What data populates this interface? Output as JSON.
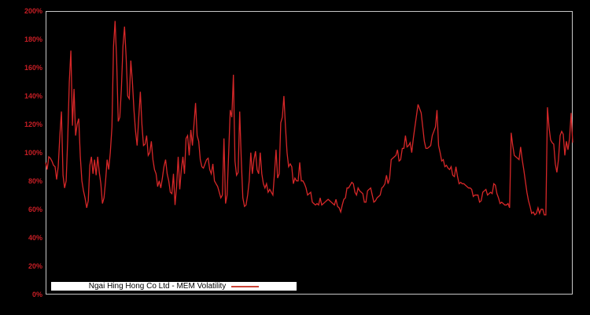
{
  "window": {
    "background_color": "#000000"
  },
  "chart": {
    "plot_border_color": "#c8c8c8",
    "line_color": "#d62728",
    "tick_label_color": "#c81e25",
    "legend": {
      "background": "#ffffff",
      "text_color": "#000000",
      "sample_line_color": "#cb4437"
    }
  },
  "chart_data": {
    "type": "line",
    "title": "",
    "xlabel": "",
    "ylabel": "",
    "ylim": [
      0,
      200
    ],
    "y_ticks": [
      "0%",
      "20%",
      "40%",
      "60%",
      "80%",
      "100%",
      "120%",
      "140%",
      "160%",
      "180%",
      "200%"
    ],
    "x_tick_labels": [],
    "grid": false,
    "legend_position": "inside-bottom-left",
    "series": [
      {
        "name": "Ngai Hing Hong Co Ltd - MEM Volatility",
        "unit": "percent",
        "values": [
          93,
          88,
          97,
          96,
          94,
          91,
          90,
          81,
          90,
          112,
          129,
          84,
          75,
          80,
          110,
          150,
          172,
          119,
          145,
          112,
          120,
          124,
          97,
          80,
          73,
          68,
          61,
          66,
          91,
          97,
          85,
          95,
          84,
          97,
          86,
          78,
          64,
          68,
          80,
          95,
          88,
          100,
          118,
          175,
          193,
          165,
          122,
          125,
          145,
          175,
          189,
          168,
          140,
          138,
          165,
          150,
          130,
          115,
          105,
          125,
          143,
          120,
          105,
          106,
          112,
          98,
          100,
          108,
          95,
          88,
          85,
          76,
          80,
          75,
          82,
          90,
          95,
          85,
          80,
          72,
          71,
          85,
          63,
          76,
          97,
          74,
          88,
          97,
          85,
          110,
          112,
          98,
          116,
          105,
          120,
          135,
          112,
          108,
          95,
          90,
          89,
          92,
          95,
          96,
          88,
          85,
          92,
          80,
          78,
          76,
          72,
          68,
          70,
          110,
          64,
          70,
          100,
          130,
          125,
          155,
          94,
          84,
          86,
          129,
          95,
          68,
          62,
          63,
          70,
          80,
          100,
          85,
          95,
          101,
          88,
          85,
          100,
          85,
          78,
          75,
          78,
          72,
          74,
          72,
          70,
          85,
          102,
          82,
          85,
          121,
          125,
          140,
          118,
          100,
          90,
          92,
          90,
          78,
          82,
          80,
          80,
          93,
          80,
          80,
          78,
          75,
          70,
          71,
          72,
          65,
          64,
          63,
          64,
          63,
          68,
          63,
          64,
          65,
          66,
          67,
          66,
          65,
          64,
          63,
          67,
          62,
          61,
          58,
          63,
          67,
          68,
          75,
          75,
          77,
          79,
          78,
          72,
          70,
          75,
          73,
          72,
          71,
          65,
          65,
          73,
          74,
          75,
          70,
          65,
          66,
          68,
          69,
          70,
          75,
          76,
          78,
          84,
          78,
          82,
          95,
          96,
          97,
          98,
          102,
          94,
          95,
          103,
          103,
          112,
          104,
          105,
          107,
          100,
          110,
          118,
          126,
          134,
          131,
          128,
          118,
          108,
          103,
          103,
          104,
          105,
          112,
          115,
          118,
          130,
          105,
          100,
          94,
          95,
          90,
          91,
          89,
          88,
          90,
          84,
          83,
          90,
          83,
          78,
          79,
          78,
          78,
          77,
          76,
          75,
          75,
          74,
          69,
          70,
          70,
          70,
          65,
          66,
          72,
          73,
          74,
          70,
          71,
          72,
          71,
          78,
          77,
          71,
          68,
          64,
          65,
          64,
          63,
          63,
          64,
          61,
          114,
          105,
          98,
          97,
          96,
          95,
          104,
          95,
          88,
          80,
          72,
          66,
          62,
          57,
          58,
          56,
          57,
          61,
          57,
          60,
          60,
          56,
          56,
          132,
          118,
          109,
          107,
          106,
          92,
          86,
          95,
          112,
          115,
          113,
          98,
          108,
          102,
          110,
          128,
          107
        ]
      }
    ]
  }
}
